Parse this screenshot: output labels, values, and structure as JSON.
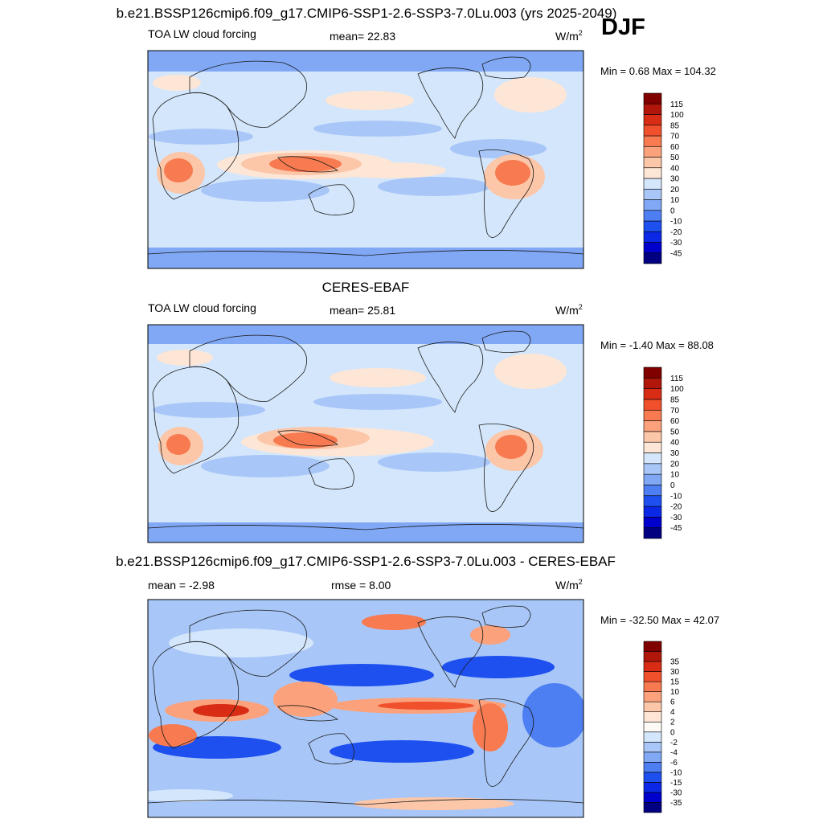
{
  "season": "DJF",
  "chart_data": [
    {
      "type": "heatmap",
      "title": "b.e21.BSSP126cmip6.f09_g17.CMIP6-SSP1-2.6-SSP3-7.0Lu.003 (yrs 2025-2049)",
      "variable": "TOA LW cloud forcing",
      "mean_text": "mean=  22.83",
      "units": "W/m",
      "units_sup": "2",
      "minmax_text": "Min =   0.68 Max = 104.32",
      "colorbar": {
        "colors": [
          "#000080",
          "#0000cd",
          "#0a28e6",
          "#1e50f0",
          "#4d7ef2",
          "#80a8f5",
          "#a8c7f8",
          "#d4e6fb",
          "#fde6d6",
          "#fcc6a8",
          "#fba27c",
          "#f77a50",
          "#f0502c",
          "#d82d14",
          "#b0160a",
          "#800000"
        ],
        "labels": [
          "-45",
          "-30",
          "-20",
          "-10",
          "0",
          "10",
          "20",
          "30",
          "40",
          "50",
          "60",
          "70",
          "85",
          "100",
          "115"
        ]
      }
    },
    {
      "type": "heatmap",
      "title": "CERES-EBAF",
      "variable": "TOA LW cloud forcing",
      "mean_text": "mean=  25.81",
      "units": "W/m",
      "units_sup": "2",
      "minmax_text": "Min =  -1.40 Max =  88.08",
      "colorbar": {
        "colors": [
          "#000080",
          "#0000cd",
          "#0a28e6",
          "#1e50f0",
          "#4d7ef2",
          "#80a8f5",
          "#a8c7f8",
          "#d4e6fb",
          "#fde6d6",
          "#fcc6a8",
          "#fba27c",
          "#f77a50",
          "#f0502c",
          "#d82d14",
          "#b0160a",
          "#800000"
        ],
        "labels": [
          "-45",
          "-30",
          "-20",
          "-10",
          "0",
          "10",
          "20",
          "30",
          "40",
          "50",
          "60",
          "70",
          "85",
          "100",
          "115"
        ]
      }
    },
    {
      "type": "heatmap",
      "title": "b.e21.BSSP126cmip6.f09_g17.CMIP6-SSP1-2.6-SSP3-7.0Lu.003 - CERES-EBAF",
      "variable": "",
      "mean_text": "mean =  -2.98",
      "rmse_text": "rmse =   8.00",
      "units": "W/m",
      "units_sup": "2",
      "minmax_text": "Min = -32.50 Max =  42.07",
      "colorbar": {
        "colors": [
          "#000080",
          "#0000cd",
          "#0a28e6",
          "#1e50f0",
          "#4d7ef2",
          "#80a8f5",
          "#a8c7f8",
          "#d4e6fb",
          "#fdfaf5",
          "#fde6d6",
          "#fcc6a8",
          "#fba27c",
          "#f77a50",
          "#f0502c",
          "#d82d14",
          "#b0160a",
          "#800000"
        ],
        "labels": [
          "-35",
          "-30",
          "-15",
          "-10",
          "-6",
          "-4",
          "-2",
          "0",
          "2",
          "4",
          "6",
          "10",
          "15",
          "30",
          "35"
        ]
      }
    }
  ]
}
